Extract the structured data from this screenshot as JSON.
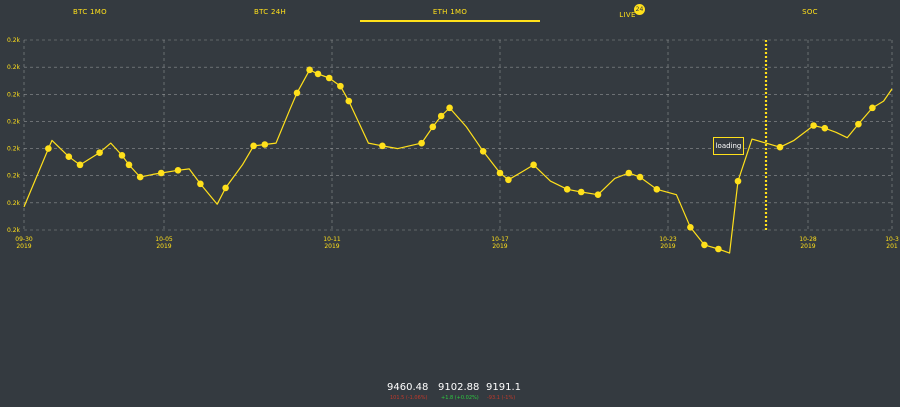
{
  "tabs": [
    {
      "label": "BTC 1MO",
      "active": false
    },
    {
      "label": "BTC 24H",
      "active": false
    },
    {
      "label": "ETH 1MO",
      "active": true
    },
    {
      "label": "LIVE",
      "active": false,
      "badge": "24"
    },
    {
      "label": "SOC",
      "active": false
    }
  ],
  "colors": {
    "background": "#343a40",
    "accent": "#ffe01b",
    "grid": "#c9c9c9",
    "negative": "#c0392b",
    "positive": "#2ecc40"
  },
  "loading_label": "loading",
  "chart_data": {
    "type": "line",
    "y_tick_labels": [
      "0.2k",
      "0.2k",
      "0.2k",
      "0.2k",
      "0.2k",
      "0.2k",
      "0.2k",
      "0.2k"
    ],
    "y_scale": [
      0,
      7
    ],
    "x_domain": [
      "2019-09-30",
      "2019-10-31"
    ],
    "x_ticks": [
      {
        "date": "2019-09-30",
        "l1": "09-30",
        "l2": "2019"
      },
      {
        "date": "2019-10-05",
        "l1": "10-05",
        "l2": "2019"
      },
      {
        "date": "2019-10-11",
        "l1": "10-11",
        "l2": "2019"
      },
      {
        "date": "2019-10-17",
        "l1": "10-17",
        "l2": "2019"
      },
      {
        "date": "2019-10-23",
        "l1": "10-23",
        "l2": "2019"
      },
      {
        "date": "2019-10-28",
        "l1": "10-28",
        "l2": "2019"
      },
      {
        "date": "2019-10-31",
        "l1": "10-3",
        "l2": "201"
      }
    ],
    "grid": true,
    "marker_date": "2019-10-26.5",
    "series": [
      {
        "values": [
          [
            0.0,
            0.85
          ],
          [
            0.87,
            3.0
          ],
          [
            1.0,
            3.3
          ],
          [
            1.6,
            2.7
          ],
          [
            2.0,
            2.4
          ],
          [
            2.7,
            2.85
          ],
          [
            3.1,
            3.2
          ],
          [
            3.5,
            2.75
          ],
          [
            3.75,
            2.4
          ],
          [
            4.15,
            1.95
          ],
          [
            4.6,
            2.05
          ],
          [
            4.9,
            2.1
          ],
          [
            5.5,
            2.2
          ],
          [
            5.9,
            2.25
          ],
          [
            6.3,
            1.7
          ],
          [
            6.9,
            0.95
          ],
          [
            7.2,
            1.55
          ],
          [
            7.8,
            2.4
          ],
          [
            8.2,
            3.1
          ],
          [
            8.6,
            3.15
          ],
          [
            9.0,
            3.2
          ],
          [
            9.5,
            4.45
          ],
          [
            9.75,
            5.05
          ],
          [
            10.2,
            5.9
          ],
          [
            10.5,
            5.75
          ],
          [
            10.9,
            5.6
          ],
          [
            11.3,
            5.3
          ],
          [
            11.6,
            4.75
          ],
          [
            12.3,
            3.2
          ],
          [
            12.8,
            3.1
          ],
          [
            13.35,
            3.0
          ],
          [
            14.2,
            3.2
          ],
          [
            14.6,
            3.8
          ],
          [
            14.9,
            4.2
          ],
          [
            15.2,
            4.5
          ],
          [
            15.8,
            3.8
          ],
          [
            16.4,
            2.9
          ],
          [
            17.0,
            2.1
          ],
          [
            17.3,
            1.85
          ],
          [
            17.8,
            2.15
          ],
          [
            18.2,
            2.4
          ],
          [
            18.8,
            1.8
          ],
          [
            19.4,
            1.5
          ],
          [
            19.9,
            1.4
          ],
          [
            20.5,
            1.3
          ],
          [
            21.1,
            1.9
          ],
          [
            21.6,
            2.1
          ],
          [
            22.0,
            1.95
          ],
          [
            22.6,
            1.5
          ],
          [
            23.3,
            1.3
          ],
          [
            23.8,
            0.1
          ],
          [
            24.3,
            -0.55
          ],
          [
            24.8,
            -0.7
          ],
          [
            25.2,
            -0.85
          ],
          [
            25.5,
            1.8
          ],
          [
            26.0,
            3.35
          ],
          [
            26.5,
            3.2
          ],
          [
            27.0,
            3.05
          ],
          [
            27.5,
            3.3
          ],
          [
            28.2,
            3.85
          ],
          [
            28.6,
            3.75
          ],
          [
            29.0,
            3.6
          ],
          [
            29.4,
            3.4
          ],
          [
            29.8,
            3.9
          ],
          [
            30.3,
            4.5
          ],
          [
            30.7,
            4.75
          ],
          [
            31.0,
            5.2
          ]
        ],
        "dot_indices": [
          1,
          3,
          4,
          5,
          7,
          8,
          9,
          11,
          12,
          14,
          16,
          18,
          19,
          22,
          23,
          24,
          25,
          26,
          27,
          29,
          31,
          32,
          33,
          34,
          36,
          37,
          38,
          40,
          42,
          43,
          44,
          46,
          47,
          48,
          50,
          51,
          52,
          54,
          57,
          59,
          60,
          63,
          64
        ]
      }
    ]
  },
  "stats": [
    {
      "value": "9460.48",
      "sub": "101.5 (-1.06%)",
      "tone": "negative"
    },
    {
      "value": "9102.88",
      "sub": "+1.8 (+0.02%)",
      "tone": "positive"
    },
    {
      "value": "9191.1",
      "sub": "-93.1 (-1%)",
      "tone": "negative"
    }
  ]
}
